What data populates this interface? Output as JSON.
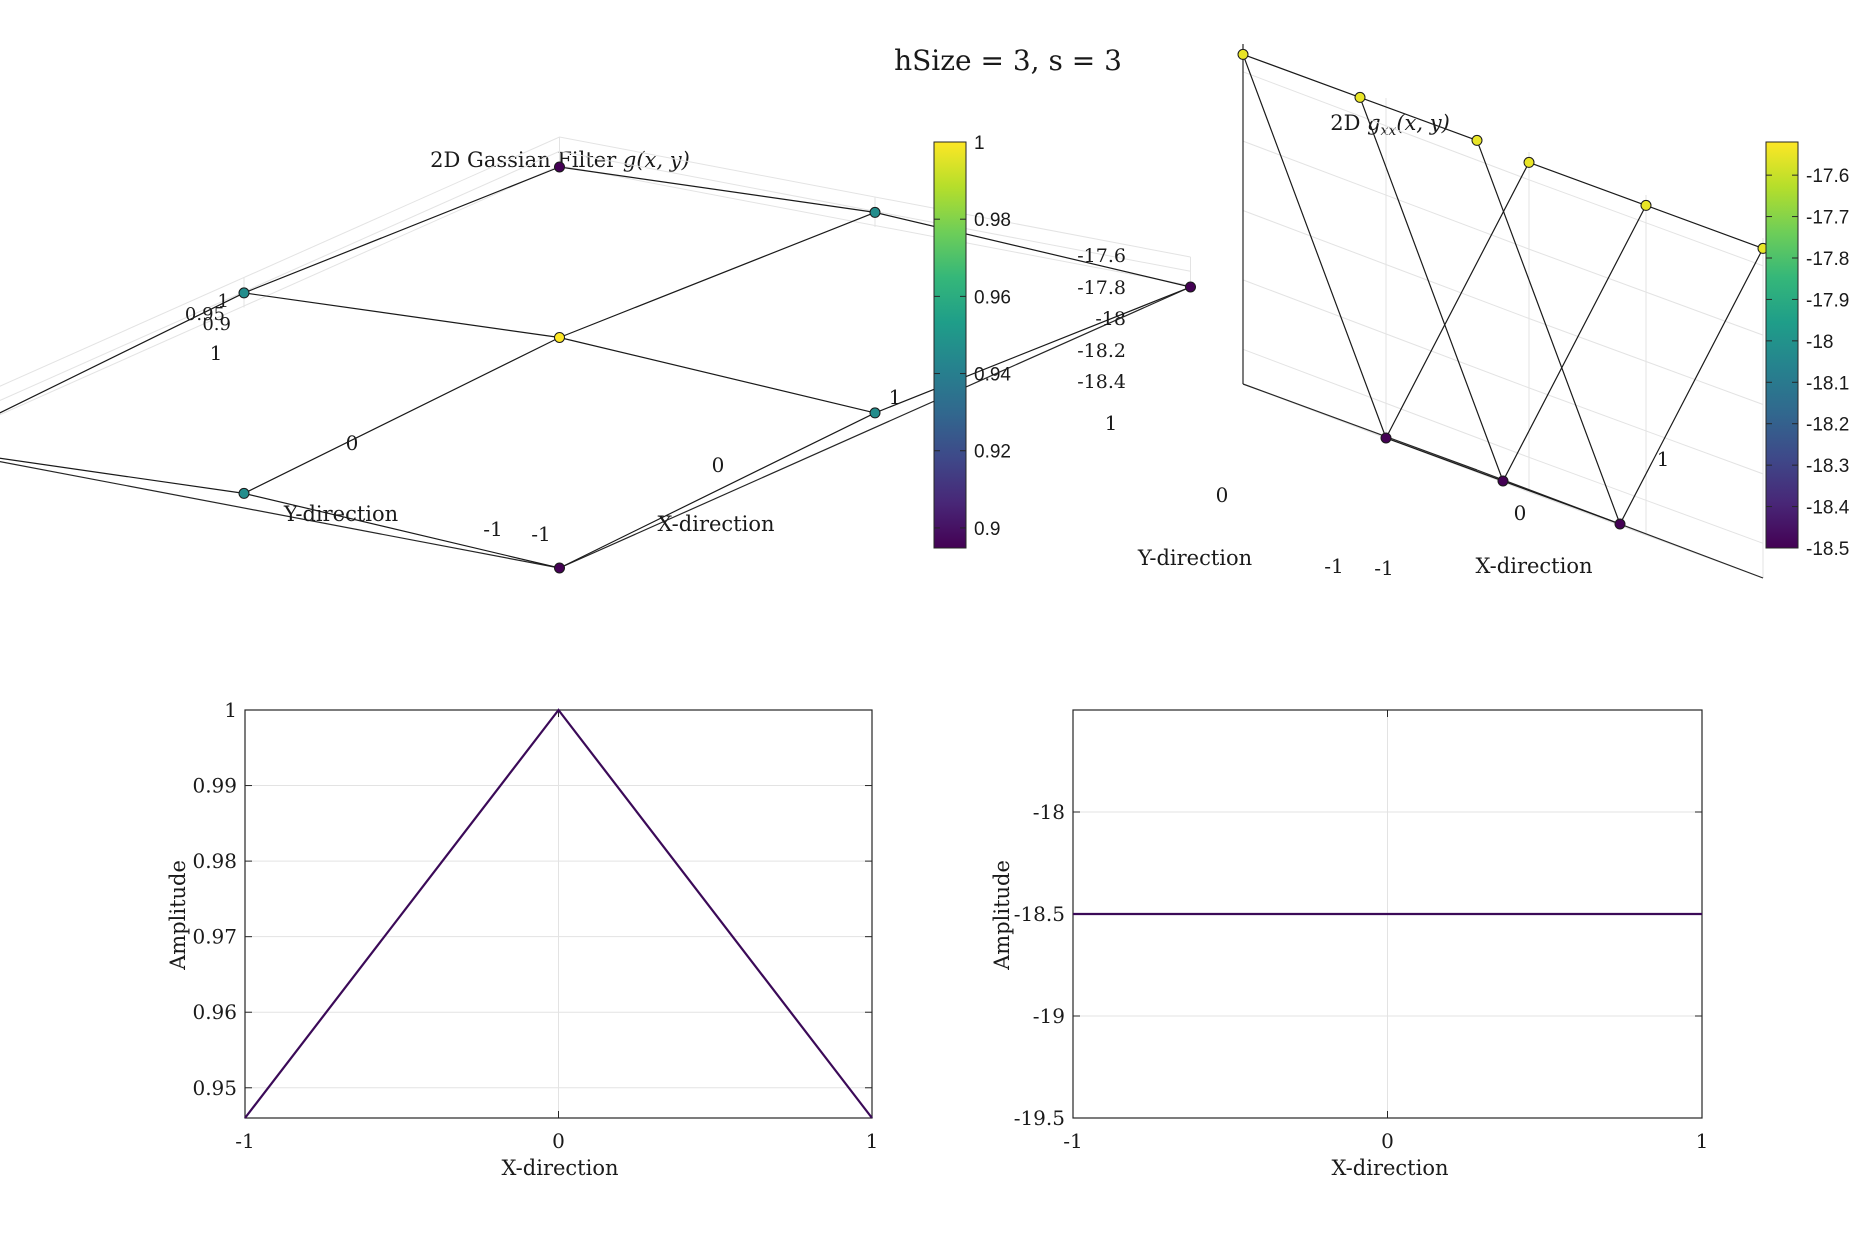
{
  "figure_title": "hSize = 3, s = 3",
  "colormap": [
    "#440154",
    "#482777",
    "#3e4989",
    "#31688e",
    "#26828e",
    "#1f9e89",
    "#35b779",
    "#6ece58",
    "#b5de2b",
    "#fde725"
  ],
  "chart_data": [
    {
      "type": "surface",
      "title": "2D Gassian Filter g(x,y)",
      "title_main": "2D Gassian Filter ",
      "title_math": "g(x, y)",
      "xlabel": "X-direction",
      "ylabel": "Y-direction",
      "x": [
        -1,
        0,
        1
      ],
      "y": [
        -1,
        0,
        1
      ],
      "z": [
        [
          0.8948,
          0.946,
          0.8948
        ],
        [
          0.946,
          1.0,
          0.946
        ],
        [
          0.8948,
          0.946,
          0.8948
        ]
      ],
      "x_ticks": [
        "-1",
        "0",
        "1"
      ],
      "y_ticks": [
        "-1",
        "0",
        "1"
      ],
      "z_ticks": [
        "0.9",
        "0.95",
        "1"
      ],
      "colorbar": {
        "range": [
          0.8948,
          1.0
        ],
        "ticks": [
          "0.9",
          "0.92",
          "0.94",
          "0.96",
          "0.98",
          "1"
        ],
        "values": [
          0.9,
          0.92,
          0.94,
          0.96,
          0.98,
          1.0
        ]
      }
    },
    {
      "type": "surface",
      "title": "2D g_xx(x,y)",
      "title_main": "2D ",
      "title_math": "g",
      "title_sub": "xx",
      "title_tail": "(x, y)",
      "xlabel": "X-direction",
      "ylabel": "Y-direction",
      "x": [
        -1,
        0,
        1
      ],
      "y": [
        -1,
        0,
        1
      ],
      "z": [
        [
          -17.55,
          -18.5,
          -17.55
        ],
        [
          -17.55,
          -18.5,
          -17.55
        ],
        [
          -17.55,
          -18.5,
          -17.55
        ]
      ],
      "x_ticks": [
        "-1",
        "0",
        "1"
      ],
      "y_ticks": [
        "0",
        "1",
        "-1"
      ],
      "z_ticks": [
        "-17.6",
        "-17.8",
        "-18",
        "-18.2",
        "-18.4"
      ],
      "colorbar": {
        "range": [
          -18.5,
          -17.52
        ],
        "ticks": [
          "-17.6",
          "-17.7",
          "-17.8",
          "-17.9",
          "-18",
          "-18.1",
          "-18.2",
          "-18.3",
          "-18.4",
          "-18.5"
        ],
        "values": [
          -17.6,
          -17.7,
          -17.8,
          -17.9,
          -18.0,
          -18.1,
          -18.2,
          -18.3,
          -18.4,
          -18.5
        ]
      }
    },
    {
      "type": "line",
      "xlabel": "X-direction",
      "ylabel": "Amplitude",
      "x": [
        -1,
        0,
        1
      ],
      "y": [
        0.946,
        1.0,
        0.946
      ],
      "xlim": [
        -1,
        1
      ],
      "ylim": [
        0.946,
        1.0
      ],
      "x_ticks": [
        -1,
        0,
        1
      ],
      "x_tick_labels": [
        "-1",
        "0",
        "1"
      ],
      "y_ticks": [
        0.95,
        0.96,
        0.97,
        0.98,
        0.99,
        1.0
      ],
      "y_tick_labels": [
        "0.95",
        "0.96",
        "0.97",
        "0.98",
        "0.99",
        "1"
      ],
      "grid": true,
      "color": "#3b0a58"
    },
    {
      "type": "line",
      "xlabel": "X-direction",
      "ylabel": "Amplitude",
      "x": [
        -1,
        0,
        1
      ],
      "y": [
        -18.5,
        -18.5,
        -18.5
      ],
      "xlim": [
        -1,
        1
      ],
      "ylim": [
        -19.5,
        -17.5
      ],
      "x_ticks": [
        -1,
        0,
        1
      ],
      "x_tick_labels": [
        "-1",
        "0",
        "1"
      ],
      "y_ticks": [
        -18.0,
        -18.5,
        -19.0,
        -19.5
      ],
      "y_tick_labels": [
        "-18",
        "-18.5",
        "-19",
        "-19.5"
      ],
      "grid": true,
      "color": "#3b0a58"
    }
  ]
}
